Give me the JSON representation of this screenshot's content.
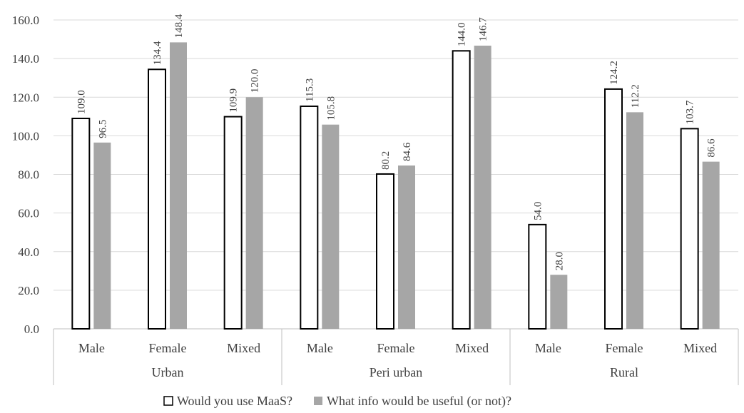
{
  "chart_data": {
    "type": "bar",
    "title": "",
    "xlabel": "",
    "ylabel": "",
    "ylim": [
      0,
      160
    ],
    "yticks": [
      "0.0",
      "20.0",
      "40.0",
      "60.0",
      "80.0",
      "100.0",
      "120.0",
      "140.0",
      "160.0"
    ],
    "grid": true,
    "legend_position": "bottom",
    "groups": [
      "Urban",
      "Peri urban",
      "Rural"
    ],
    "categories": [
      "Male",
      "Female",
      "Mixed",
      "Male",
      "Female",
      "Mixed",
      "Male",
      "Female",
      "Mixed"
    ],
    "series": [
      {
        "name": "Would you use MaaS?",
        "color": "#ffffff",
        "stroke": "#000000",
        "values": [
          109.0,
          134.4,
          109.9,
          115.3,
          80.2,
          144.0,
          54.0,
          124.2,
          103.7
        ],
        "labels": [
          "109.0",
          "134.4",
          "109.9",
          "115.3",
          "80.2",
          "144.0",
          "54.0",
          "124.2",
          "103.7"
        ]
      },
      {
        "name": "What info would be useful (or not)?",
        "color": "#a6a6a6",
        "stroke": "none",
        "values": [
          96.5,
          148.4,
          120.0,
          105.8,
          84.6,
          146.7,
          28.0,
          112.2,
          86.6
        ],
        "labels": [
          "96.5",
          "148.4",
          "120.0",
          "105.8",
          "84.6",
          "146.7",
          "28.0",
          "112.2",
          "86.6"
        ]
      }
    ]
  }
}
